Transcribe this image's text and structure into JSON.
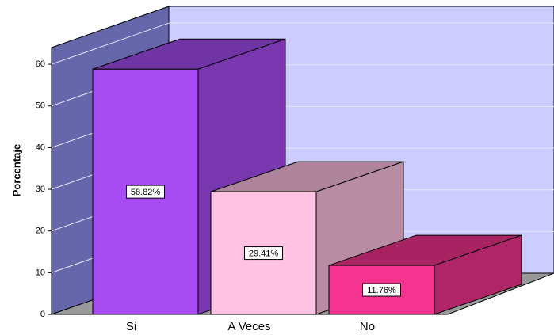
{
  "chart_data": {
    "type": "bar3d",
    "y_label": "Porcentaje",
    "categories": [
      "Si",
      "A Veces",
      "No"
    ],
    "values": [
      58.82,
      29.41,
      11.76
    ],
    "value_labels": [
      "58.82%",
      "29.41%",
      "11.76%"
    ],
    "colors": [
      "#a64cf2",
      "#ffc2e2",
      "#f5348f"
    ],
    "ylim": [
      0,
      64
    ],
    "yticks": [
      0,
      10,
      20,
      30,
      40,
      50,
      60
    ],
    "grid": true
  }
}
